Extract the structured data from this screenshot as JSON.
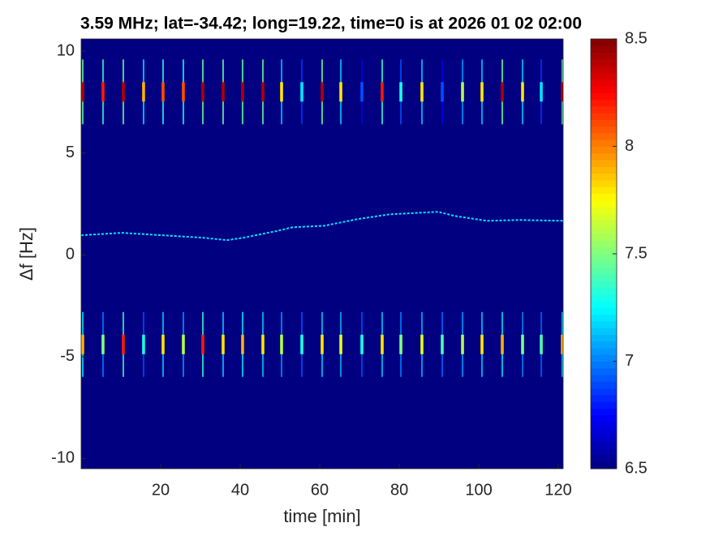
{
  "chart_data": {
    "type": "spectrogram",
    "title": "3.59 MHz;  lat=-34.42; long=19.22, time=0 is at 2026 01 02 02:00",
    "x_label": "time [min]",
    "y_label": "Δf [Hz]",
    "xlim": [
      0,
      121.2
    ],
    "ylim": [
      -10.5,
      10.6
    ],
    "xticks": [
      20,
      40,
      60,
      80,
      100,
      120
    ],
    "yticks": [
      -10,
      -5,
      0,
      5,
      10
    ],
    "clim": [
      6.5,
      8.5
    ],
    "cticks": [
      6.5,
      7,
      7.5,
      8,
      8.5
    ],
    "colormap": "jet",
    "pulses": {
      "x": [
        0.4,
        5.5,
        10.6,
        15.7,
        20.6,
        25.7,
        30.6,
        35.7,
        40.6,
        45.7,
        50.4,
        55.5,
        60.6,
        65.3,
        70.6,
        75.7,
        80.4,
        85.7,
        90.8,
        95.9,
        100.8,
        105.9,
        111,
        115.7,
        121
      ],
      "rows": [
        {
          "f": 8,
          "values": [
            8.4,
            8.2,
            8.4,
            7.9,
            8.1,
            8.1,
            8.4,
            8.4,
            8.4,
            8.4,
            7.8,
            7.2,
            8.4,
            7.8,
            6.9,
            8.2,
            7.3,
            7.8,
            6.9,
            7.6,
            7.8,
            8.4,
            7.8,
            7.2,
            8.4
          ]
        },
        {
          "f": -4.4,
          "values": [
            7.9,
            7.5,
            8.2,
            7.3,
            7.8,
            7.6,
            8.2,
            7.8,
            7.9,
            7.8,
            7.6,
            7.3,
            7.8,
            7.7,
            7.3,
            7.8,
            7.5,
            7.7,
            7.4,
            7.6,
            7.8,
            7.9,
            7.5,
            7.4,
            7.9
          ]
        }
      ]
    },
    "trace": {
      "x": [
        0,
        10.2,
        20.4,
        30.6,
        36.7,
        40.8,
        49,
        53.1,
        61.2,
        69.4,
        77.6,
        85.7,
        89.8,
        93.9,
        102,
        110.2,
        121.2
      ],
      "y": [
        0.96,
        1.08,
        0.96,
        0.84,
        0.72,
        0.84,
        1.16,
        1.35,
        1.43,
        1.75,
        1.99,
        2.07,
        2.11,
        1.91,
        1.67,
        1.71,
        1.67
      ],
      "value": 7.2
    }
  }
}
